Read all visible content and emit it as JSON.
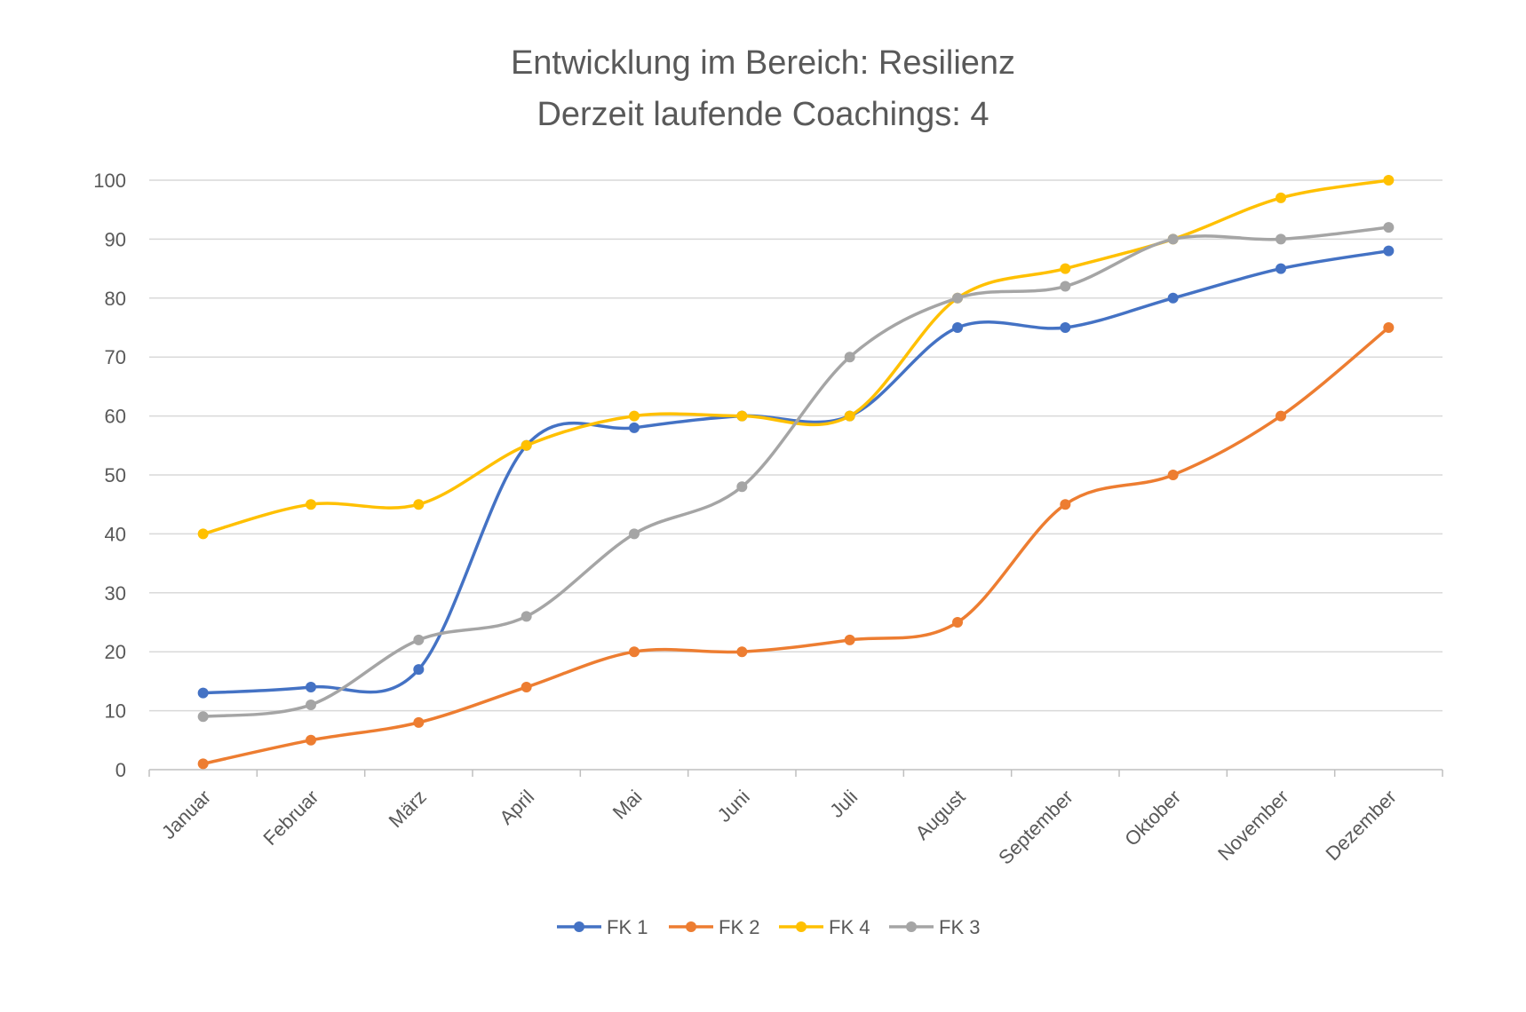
{
  "chart_data": {
    "type": "line",
    "title": "Entwicklung im Bereich: Resilienz",
    "subtitle": "Derzeit laufende Coachings: 4",
    "categories": [
      "Januar",
      "Februar",
      "März",
      "April",
      "Mai",
      "Juni",
      "Juli",
      "August",
      "September",
      "Oktober",
      "November",
      "Dezember"
    ],
    "ylim": [
      0,
      100
    ],
    "yticks": [
      "0",
      "10",
      "20",
      "30",
      "40",
      "50",
      "60",
      "70",
      "80",
      "90",
      "100"
    ],
    "grid": true,
    "legend_position": "bottom",
    "smooth": true,
    "series": [
      {
        "name": "FK 1",
        "color": "#4472C4",
        "values": [
          13,
          14,
          17,
          55,
          58,
          60,
          60,
          75,
          75,
          80,
          85,
          88
        ]
      },
      {
        "name": "FK 2",
        "color": "#ED7D31",
        "values": [
          1,
          5,
          8,
          14,
          20,
          20,
          22,
          25,
          45,
          50,
          60,
          75
        ]
      },
      {
        "name": "FK 4",
        "color": "#FFC000",
        "values": [
          40,
          45,
          45,
          55,
          60,
          60,
          60,
          80,
          85,
          90,
          97,
          100
        ]
      },
      {
        "name": "FK 3",
        "color": "#A5A5A5",
        "values": [
          9,
          11,
          22,
          26,
          40,
          48,
          70,
          80,
          82,
          90,
          90,
          92
        ]
      }
    ]
  }
}
